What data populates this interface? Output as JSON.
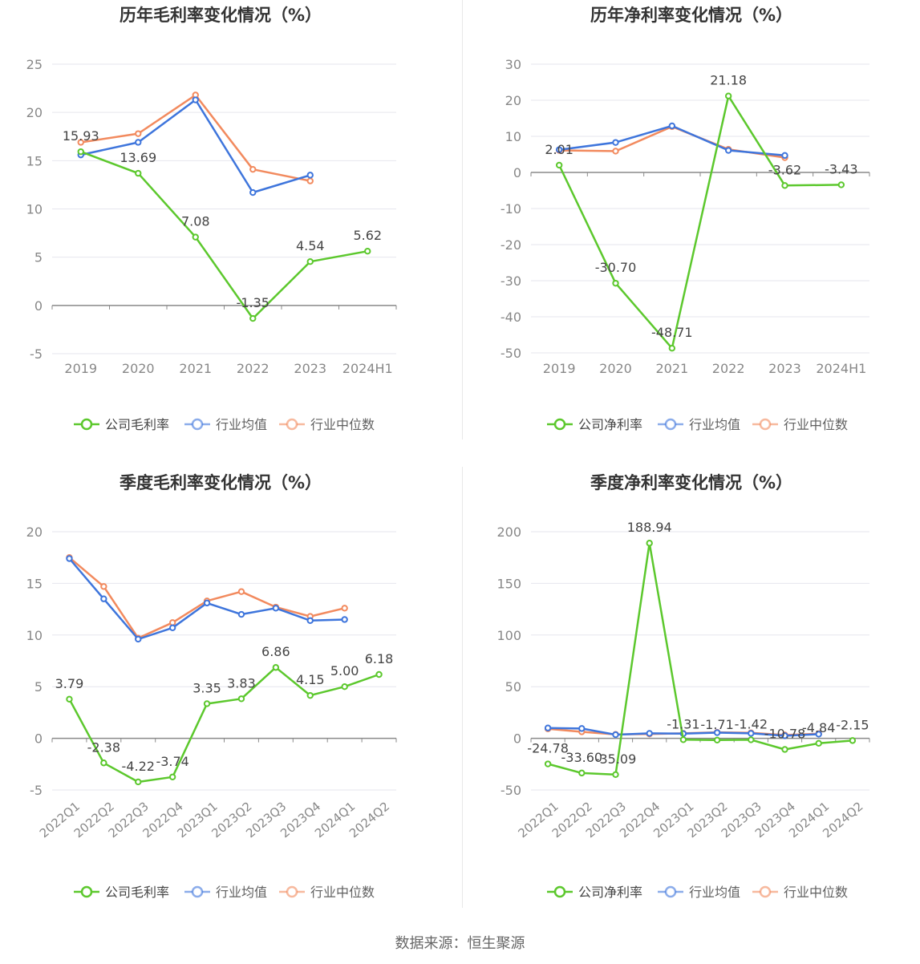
{
  "colors": {
    "company": "#5cc82d",
    "avg": "#3e75dc",
    "median": "#f28a5e",
    "grid": "#e6e6ee",
    "axis": "#8a8a8a",
    "text": "#444444",
    "tick": "#888888"
  },
  "footer": {
    "source": "数据来源：恒生聚源"
  },
  "chart_data": [
    {
      "type": "line",
      "title": "历年毛利率变化情况（%）",
      "categories": [
        "2019",
        "2020",
        "2021",
        "2022",
        "2023",
        "2024H1"
      ],
      "ylim": [
        -5,
        25
      ],
      "yticks": [
        -5,
        0,
        5,
        10,
        15,
        20,
        25
      ],
      "legend": [
        "公司毛利率",
        "行业均值",
        "行业中位数"
      ],
      "series": [
        {
          "name": "公司毛利率",
          "key": "company",
          "values": [
            15.93,
            13.69,
            7.08,
            -1.35,
            4.54,
            5.62
          ],
          "labels": [
            "15.93",
            "13.69",
            "7.08",
            "-1.35",
            "4.54",
            "5.62"
          ]
        },
        {
          "name": "行业均值",
          "key": "avg",
          "values": [
            15.6,
            16.9,
            21.3,
            11.7,
            13.5,
            null
          ]
        },
        {
          "name": "行业中位数",
          "key": "median",
          "values": [
            16.9,
            17.8,
            21.8,
            14.1,
            12.9,
            null
          ]
        }
      ]
    },
    {
      "type": "line",
      "title": "历年净利率变化情况（%）",
      "categories": [
        "2019",
        "2020",
        "2021",
        "2022",
        "2023",
        "2024H1"
      ],
      "ylim": [
        -50,
        30
      ],
      "yticks": [
        -50,
        -40,
        -30,
        -20,
        -10,
        0,
        10,
        20,
        30
      ],
      "legend": [
        "公司净利率",
        "行业均值",
        "行业中位数"
      ],
      "series": [
        {
          "name": "公司净利率",
          "key": "company",
          "values": [
            2.01,
            -30.7,
            -48.71,
            21.18,
            -3.62,
            -3.43
          ],
          "labels": [
            "2.01",
            "-30.70",
            "-48.71",
            "21.18",
            "-3.62",
            "-3.43"
          ]
        },
        {
          "name": "行业均值",
          "key": "avg",
          "values": [
            6.3,
            8.3,
            12.9,
            6.1,
            4.7,
            null
          ]
        },
        {
          "name": "行业中位数",
          "key": "median",
          "values": [
            6.1,
            5.9,
            12.7,
            6.4,
            4.1,
            null
          ]
        }
      ]
    },
    {
      "type": "line",
      "title": "季度毛利率变化情况（%）",
      "categories": [
        "2022Q1",
        "2022Q2",
        "2022Q3",
        "2022Q4",
        "2023Q1",
        "2023Q2",
        "2023Q3",
        "2023Q4",
        "2024Q1",
        "2024Q2"
      ],
      "ylim": [
        -5,
        20
      ],
      "yticks": [
        -5,
        0,
        5,
        10,
        15,
        20
      ],
      "legend": [
        "公司毛利率",
        "行业均值",
        "行业中位数"
      ],
      "series": [
        {
          "name": "公司毛利率",
          "key": "company",
          "values": [
            3.79,
            -2.38,
            -4.22,
            -3.74,
            3.35,
            3.83,
            6.86,
            4.15,
            5.0,
            6.18
          ],
          "labels": [
            "3.79",
            "-2.38",
            "-4.22",
            "-3.74",
            "3.35",
            "3.83",
            "6.86",
            "4.15",
            "5.00",
            "6.18"
          ]
        },
        {
          "name": "行业均值",
          "key": "avg",
          "values": [
            17.4,
            13.5,
            9.6,
            10.7,
            13.1,
            12.0,
            12.6,
            11.4,
            11.5,
            null
          ]
        },
        {
          "name": "行业中位数",
          "key": "median",
          "values": [
            17.5,
            14.7,
            9.7,
            11.2,
            13.3,
            14.2,
            12.7,
            11.8,
            12.6,
            null
          ]
        }
      ]
    },
    {
      "type": "line",
      "title": "季度净利率变化情况（%）",
      "categories": [
        "2022Q1",
        "2022Q2",
        "2022Q3",
        "2022Q4",
        "2023Q1",
        "2023Q2",
        "2023Q3",
        "2023Q4",
        "2024Q1",
        "2024Q2"
      ],
      "ylim": [
        -50,
        200
      ],
      "yticks": [
        -50,
        0,
        50,
        100,
        150,
        200
      ],
      "legend": [
        "公司净利率",
        "行业均值",
        "行业中位数"
      ],
      "series": [
        {
          "name": "公司净利率",
          "key": "company",
          "values": [
            -24.78,
            -33.6,
            -35.09,
            188.94,
            -1.31,
            -1.71,
            -1.42,
            -10.78,
            -4.84,
            -2.15
          ],
          "labels": [
            "-24.78",
            "-33.60",
            "-35.09",
            "188.94",
            "-1.31",
            "-1.71",
            "-1.42",
            "-10.78",
            "-4.84",
            "-2.15"
          ]
        },
        {
          "name": "行业均值",
          "key": "avg",
          "values": [
            10.0,
            9.5,
            3.5,
            4.8,
            4.5,
            5.5,
            4.8,
            2.5,
            4.0,
            null
          ]
        },
        {
          "name": "行业中位数",
          "key": "median",
          "values": [
            9.2,
            6.3,
            3.8,
            4.2,
            4.8,
            5.8,
            5.3,
            3.2,
            4.5,
            null
          ]
        }
      ]
    }
  ]
}
